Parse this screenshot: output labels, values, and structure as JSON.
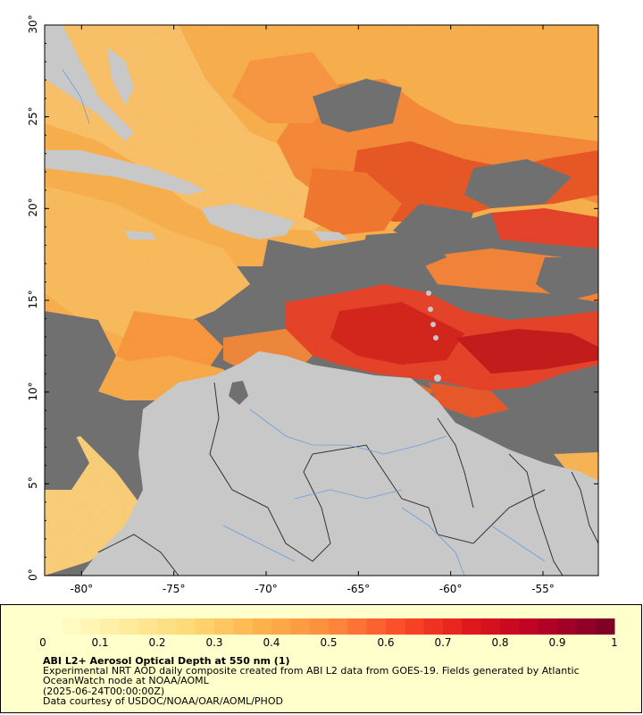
{
  "map": {
    "lat_labels": [
      "0°",
      "5°",
      "10°",
      "15°",
      "20°",
      "25°",
      "30°"
    ],
    "lon_labels": [
      "-80°",
      "-75°",
      "-70°",
      "-65°",
      "-60°",
      "-55°"
    ],
    "lat_range": [
      0,
      30
    ],
    "lon_range": [
      -82,
      -52
    ],
    "colors": {
      "no_data": "#707070",
      "land": "#c8c8c8",
      "rivers": "#6a9fd6",
      "borders": "#333333"
    }
  },
  "colorbar": {
    "ticks": [
      "0",
      "0.1",
      "0.2",
      "0.3",
      "0.4",
      "0.5",
      "0.6",
      "0.7",
      "0.8",
      "0.9",
      "1"
    ],
    "range": [
      0,
      1
    ],
    "colors": [
      "#ffffcc",
      "#ffeda0",
      "#fed976",
      "#feb24c",
      "#fd8d3c",
      "#fc4e2a",
      "#e31a1c",
      "#bd0026",
      "#800026"
    ]
  },
  "legend": {
    "title": "ABI L2+ Aerosol Optical Depth at 550 nm (1)",
    "description": "Experimental NRT AOD daily composite created from ABI L2 data from GOES-19. Fields generated by Atlantic OceanWatch node at NOAA/AOML",
    "date": "(2025-06-24T00:00:00Z)",
    "credit": "Data courtesy of USDOC/NOAA/OAR/AOML/PHOD"
  }
}
